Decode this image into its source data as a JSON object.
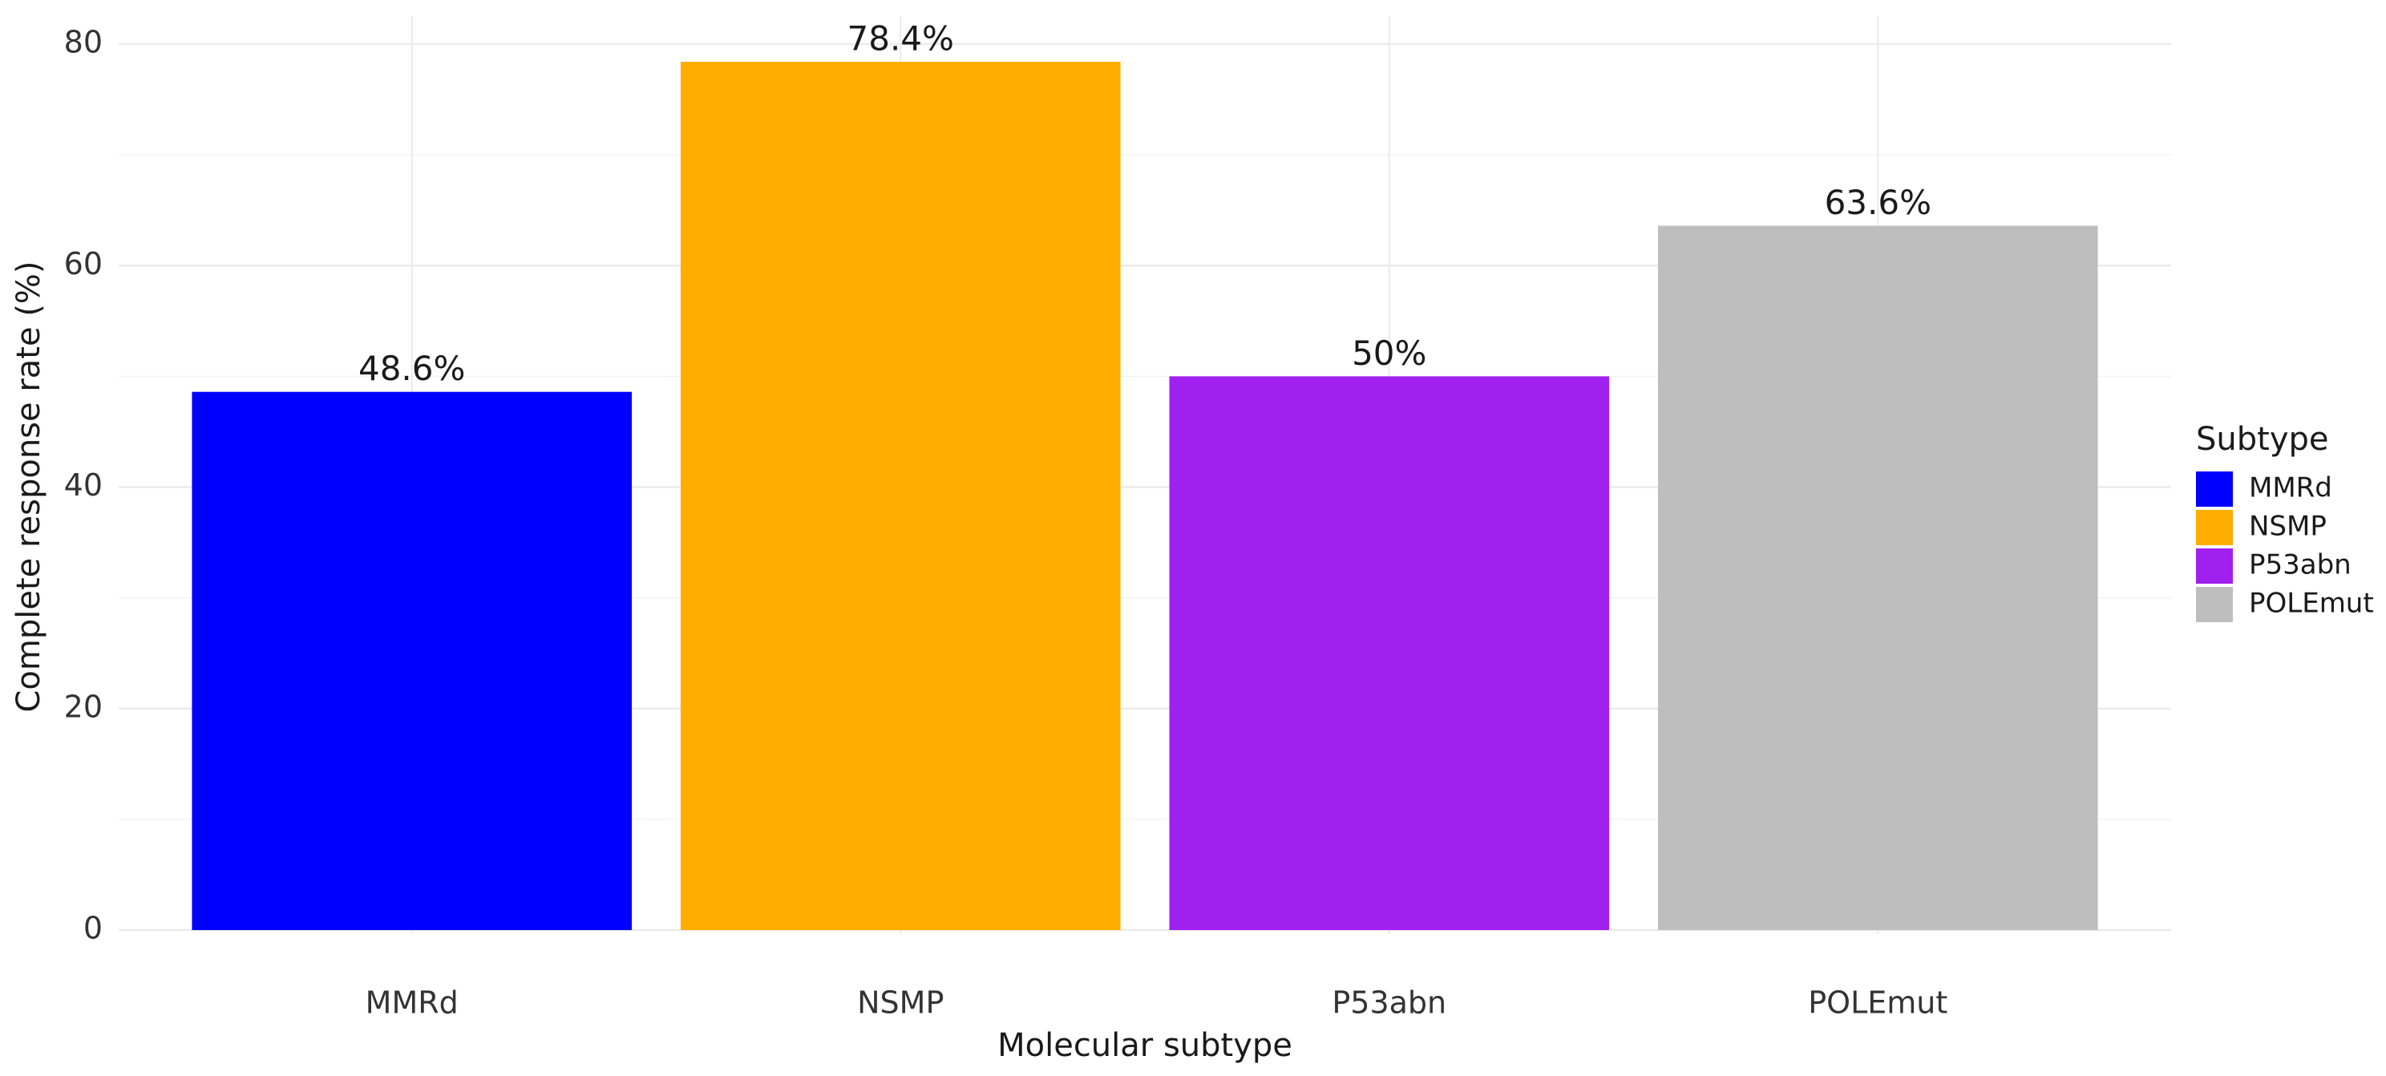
{
  "chart_data": {
    "type": "bar",
    "x_label": "Molecular subtype",
    "y_label": "Complete response rate (%)",
    "categories": [
      "MMRd",
      "NSMP",
      "P53abn",
      "POLEmut"
    ],
    "values": [
      48.6,
      78.4,
      50,
      63.6
    ],
    "value_labels": [
      "48.6%",
      "78.4%",
      "50%",
      "63.6%"
    ],
    "colors": [
      "#0000ff",
      "#ffae00",
      "#a020f0",
      "#bebebe"
    ],
    "ylim": [
      0,
      80
    ],
    "yticks": [
      0,
      20,
      40,
      60,
      80
    ],
    "y_minor_grid": [
      10,
      30,
      50,
      70
    ],
    "grid": true,
    "legend_title": "Subtype",
    "legend": "right"
  }
}
